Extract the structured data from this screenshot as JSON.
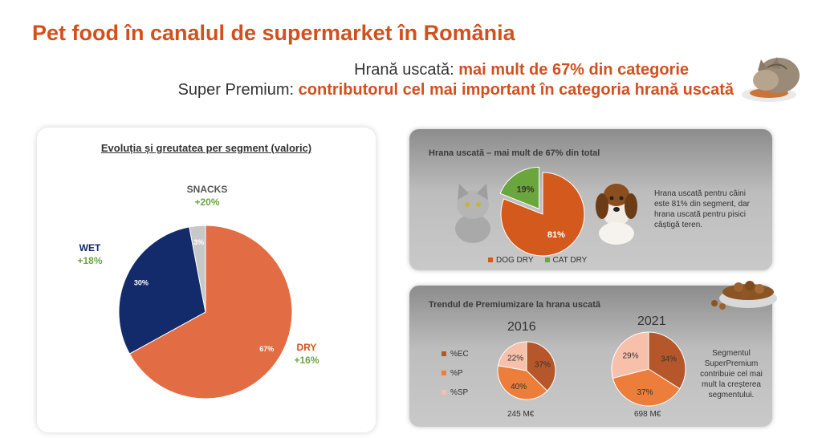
{
  "header": {
    "title": "Pet food în canalul de supermarket în România",
    "line1_prefix": "Hrană uscată:",
    "line1_highlight": "mai mult de 67% din categorie",
    "line2_prefix": "Super Premium:",
    "line2_highlight": "contributorul cel mai important în categoria hrană uscată"
  },
  "left_panel": {
    "title": "Evoluția și greutatea per segment (valoric)"
  },
  "right_top": {
    "title": "Hrana uscată – mai mult de 67% din total",
    "note": "Hrana uscată pentru câini este 81% din segment, dar hrana uscată pentru pisici câștigă teren.",
    "legend": [
      "DOG DRY",
      "CAT DRY"
    ]
  },
  "right_bottom": {
    "title": "Trendul de Premiumizare la hrana uscată",
    "legend": [
      "%EC",
      "%P",
      "%SP"
    ],
    "note": "Segmentul SuperPremium contribuie cel mai mult la creșterea segmentului."
  },
  "colors": {
    "dry": "#e26d45",
    "wet": "#142b6b",
    "snacks": "#c8c8c8",
    "accent": "#d2501e",
    "green": "#6aa53e",
    "dog_dry": "#d4591c",
    "cat_dry": "#6aa53e",
    "ec": "#b5572a",
    "p": "#ec7d3a",
    "sp": "#f6c0ab"
  },
  "chart_data": [
    {
      "type": "pie",
      "title": "Evoluția și greutatea per segment (valoric)",
      "slices": [
        {
          "name": "DRY",
          "value": 67,
          "label": "67%",
          "growth": "+16%"
        },
        {
          "name": "WET",
          "value": 30,
          "label": "30%",
          "growth": "+18%"
        },
        {
          "name": "SNACKS",
          "value": 3,
          "label": "3%",
          "growth": "+20%"
        }
      ]
    },
    {
      "type": "pie",
      "title": "Hrana uscată – mai mult de 67% din total",
      "slices": [
        {
          "name": "DOG DRY",
          "value": 81,
          "label": "81%"
        },
        {
          "name": "CAT DRY",
          "value": 19,
          "label": "19%"
        }
      ]
    },
    {
      "type": "pie",
      "title": "2016",
      "caption": "245 M€",
      "slices": [
        {
          "name": "%EC",
          "value": 37,
          "label": "37%"
        },
        {
          "name": "%P",
          "value": 40,
          "label": "40%"
        },
        {
          "name": "%SP",
          "value": 22,
          "label": "22%"
        }
      ]
    },
    {
      "type": "pie",
      "title": "2021",
      "caption": "698 M€",
      "slices": [
        {
          "name": "%EC",
          "value": 34,
          "label": "34%"
        },
        {
          "name": "%P",
          "value": 37,
          "label": "37%"
        },
        {
          "name": "%SP",
          "value": 29,
          "label": "29%"
        }
      ]
    }
  ]
}
